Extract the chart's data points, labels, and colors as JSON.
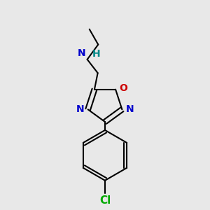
{
  "background_color": "#e8e8e8",
  "bond_color": "#000000",
  "N_color": "#0000cc",
  "O_color": "#cc0000",
  "Cl_color": "#00aa00",
  "H_color": "#008888",
  "bond_width": 1.5,
  "figsize": [
    3.0,
    3.0
  ],
  "dpi": 100,
  "xlim": [
    0.2,
    0.8
  ],
  "ylim": [
    0.02,
    0.98
  ]
}
